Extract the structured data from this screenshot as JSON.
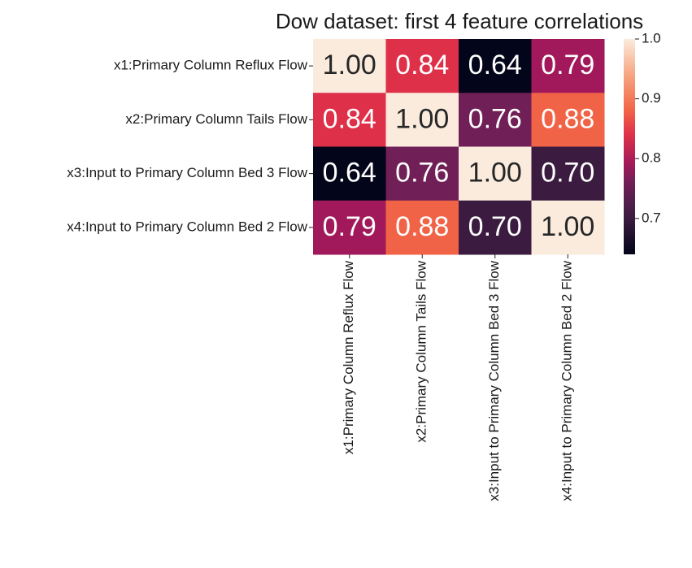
{
  "chart_data": {
    "type": "heatmap",
    "title": "Dow dataset: first 4 feature correlations",
    "x_categories": [
      "x1:Primary Column Reflux Flow",
      "x2:Primary Column Tails Flow",
      "x3:Input to Primary Column Bed 3 Flow",
      "x4:Input to Primary Column Bed 2 Flow"
    ],
    "y_categories": [
      "x1:Primary Column Reflux Flow",
      "x2:Primary Column Tails Flow",
      "x3:Input to Primary Column Bed 3 Flow",
      "x4:Input to Primary Column Bed 2 Flow"
    ],
    "values": [
      [
        1,
        0.84,
        0.64,
        0.79
      ],
      [
        0.84,
        1,
        0.76,
        0.88
      ],
      [
        0.64,
        0.76,
        1,
        0.7
      ],
      [
        0.79,
        0.88,
        0.7,
        1
      ]
    ],
    "value_labels": [
      [
        "1.00",
        "0.84",
        "0.64",
        "0.79"
      ],
      [
        "0.84",
        "1.00",
        "0.76",
        "0.88"
      ],
      [
        "0.64",
        "0.76",
        "1.00",
        "0.70"
      ],
      [
        "0.79",
        "0.88",
        "0.70",
        "1.00"
      ]
    ],
    "zlim": [
      0.64,
      1.0
    ],
    "zticks": [
      0.7,
      0.8,
      0.9,
      {
        "value": 1.0,
        "label": "1.0"
      }
    ],
    "colormap": [
      [
        0,
        "#03051a"
      ],
      [
        0.167,
        "#3b1c40"
      ],
      [
        0.333,
        "#701f57"
      ],
      [
        0.417,
        "#a1195b"
      ],
      [
        0.556,
        "#de3048"
      ],
      [
        0.667,
        "#f16346"
      ],
      [
        0.83,
        "#f6a47f"
      ],
      [
        1,
        "#faebdd"
      ]
    ]
  }
}
